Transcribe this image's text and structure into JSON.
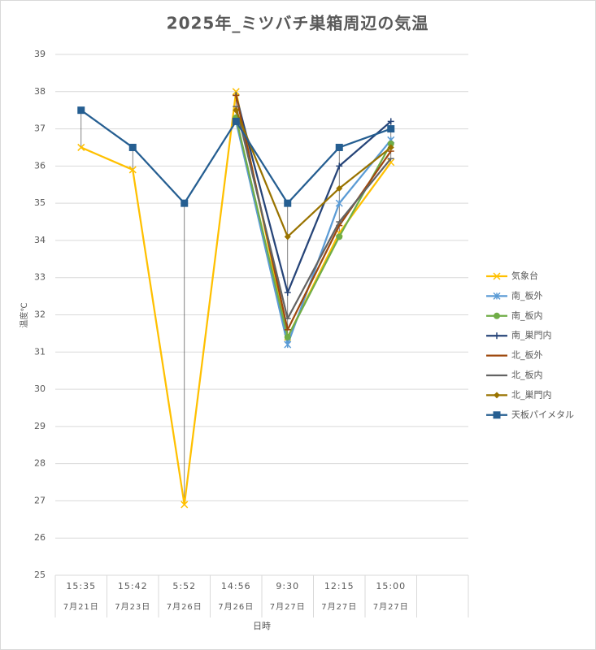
{
  "chart_data": {
    "type": "line",
    "title": "2025年_ミツバチ巣箱周辺の気温",
    "y_label": "温度℃",
    "x_label": "日時",
    "categories": [
      "15:35",
      "15:42",
      "5:52",
      "14:56",
      "9:30",
      "12:15",
      "15:00",
      null
    ],
    "dates": [
      "7月21日",
      "7月23日",
      "7月26日",
      "7月26日",
      "7月27日",
      "7月27日",
      "7月27日",
      null
    ],
    "ylim": [
      25,
      39
    ],
    "yticks": [
      25,
      26,
      27,
      28,
      29,
      30,
      31,
      32,
      33,
      34,
      35,
      36,
      37,
      38,
      39
    ],
    "grid": true,
    "high_low_lines": true,
    "legend": "right",
    "series": [
      {
        "name": "気象台",
        "color": "#FFC000",
        "marker": "x",
        "values": [
          36.5,
          35.9,
          26.9,
          38.0,
          31.4,
          34.2,
          36.1,
          null
        ]
      },
      {
        "name": "南_板外",
        "color": "#5B9BD5",
        "marker": "star",
        "values": [
          null,
          null,
          null,
          37.2,
          31.2,
          35.0,
          36.7,
          null
        ]
      },
      {
        "name": "南_板内",
        "color": "#70AD47",
        "marker": "circle",
        "values": [
          null,
          null,
          null,
          37.3,
          31.4,
          34.1,
          36.6,
          null
        ]
      },
      {
        "name": "南_巣門内",
        "color": "#264478",
        "marker": "plus",
        "values": [
          null,
          null,
          null,
          37.9,
          32.6,
          36.0,
          37.2,
          null
        ]
      },
      {
        "name": "北_板外",
        "color": "#9E480E",
        "marker": "dash",
        "values": [
          null,
          null,
          null,
          37.9,
          31.6,
          34.4,
          36.4,
          null
        ]
      },
      {
        "name": "北_板内",
        "color": "#636363",
        "marker": "dash",
        "values": [
          null,
          null,
          null,
          37.6,
          31.9,
          34.5,
          36.2,
          null
        ]
      },
      {
        "name": "北_巣門内",
        "color": "#997300",
        "marker": "diamond",
        "values": [
          null,
          null,
          null,
          37.5,
          34.1,
          35.4,
          36.5,
          null
        ]
      },
      {
        "name": "天板パイメタル",
        "color": "#255E91",
        "marker": "square",
        "values": [
          37.5,
          36.5,
          35.0,
          37.2,
          35.0,
          36.5,
          37.0,
          null
        ]
      }
    ]
  }
}
